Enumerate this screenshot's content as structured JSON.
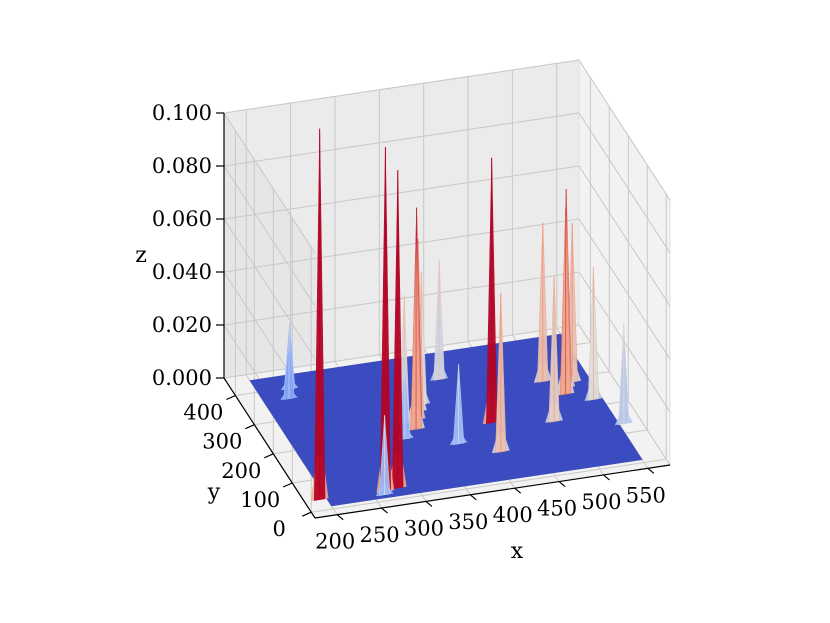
{
  "chart_data": {
    "type": "surface3d",
    "title": "",
    "xlabel": "x",
    "ylabel": "y",
    "zlabel": "z",
    "xlim": [
      175,
      575
    ],
    "ylim": [
      -20,
      460
    ],
    "zlim": [
      0,
      0.1
    ],
    "x_ticks": [
      "200",
      "250",
      "300",
      "350",
      "400",
      "450",
      "500",
      "550"
    ],
    "x_tick_values": [
      200,
      250,
      300,
      350,
      400,
      450,
      500,
      550
    ],
    "y_ticks": [
      "0",
      "100",
      "200",
      "300",
      "400"
    ],
    "y_tick_values": [
      0,
      100,
      200,
      300,
      400
    ],
    "z_ticks": [
      "0.000",
      "0.020",
      "0.040",
      "0.060",
      "0.080",
      "0.100"
    ],
    "z_tick_values": [
      0,
      0.02,
      0.04,
      0.06,
      0.08,
      0.1
    ],
    "colormap": [
      "#3b4cc0",
      "#8db0fe",
      "#dddddd",
      "#f49a7b",
      "#b40426"
    ],
    "grid": true,
    "peaks": [
      {
        "x": 192,
        "y": 35,
        "z": 0.14
      },
      {
        "x": 262,
        "y": 20,
        "z": 0.03
      },
      {
        "x": 265,
        "y": 30,
        "z": 0.13
      },
      {
        "x": 280,
        "y": 35,
        "z": 0.12
      },
      {
        "x": 228,
        "y": 365,
        "z": 0.022
      },
      {
        "x": 235,
        "y": 395,
        "z": 0.025
      },
      {
        "x": 320,
        "y": 185,
        "z": 0.028
      },
      {
        "x": 330,
        "y": 235,
        "z": 0.048
      },
      {
        "x": 338,
        "y": 210,
        "z": 0.07
      },
      {
        "x": 345,
        "y": 240,
        "z": 0.08
      },
      {
        "x": 352,
        "y": 265,
        "z": 0.065
      },
      {
        "x": 360,
        "y": 285,
        "z": 0.05
      },
      {
        "x": 372,
        "y": 145,
        "z": 0.03
      },
      {
        "x": 395,
        "y": 355,
        "z": 0.045
      },
      {
        "x": 410,
        "y": 100,
        "z": 0.06
      },
      {
        "x": 420,
        "y": 195,
        "z": 0.1
      },
      {
        "x": 485,
        "y": 170,
        "z": 0.055
      },
      {
        "x": 500,
        "y": 300,
        "z": 0.06
      },
      {
        "x": 515,
        "y": 250,
        "z": 0.07
      },
      {
        "x": 520,
        "y": 270,
        "z": 0.075
      },
      {
        "x": 530,
        "y": 285,
        "z": 0.06
      },
      {
        "x": 540,
        "y": 220,
        "z": 0.05
      },
      {
        "x": 555,
        "y": 130,
        "z": 0.038
      }
    ]
  }
}
